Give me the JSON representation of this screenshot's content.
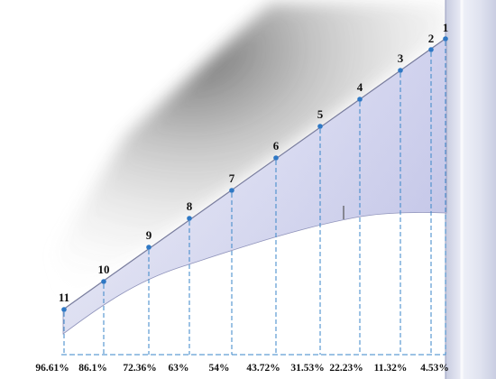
{
  "stations": [
    {
      "label": "1",
      "percent": "4.53%"
    },
    {
      "label": "2",
      "percent": ""
    },
    {
      "label": "3",
      "percent": "11.32%"
    },
    {
      "label": "4",
      "percent": "22.23%"
    },
    {
      "label": "5",
      "percent": "31.53%"
    },
    {
      "label": "6",
      "percent": "43.72%"
    },
    {
      "label": "7",
      "percent": "54%"
    },
    {
      "label": "8",
      "percent": "63%"
    },
    {
      "label": "9",
      "percent": "72.36%"
    },
    {
      "label": "10",
      "percent": "86.1%"
    },
    {
      "label": "11",
      "percent": "96.61%"
    }
  ],
  "colors": {
    "wing_light": "#f1f2fb",
    "wing_dark": "#c6c8ea",
    "fuselage": "#dfe2f0",
    "marker": "#2f78c4",
    "guide": "#3a86c8"
  }
}
